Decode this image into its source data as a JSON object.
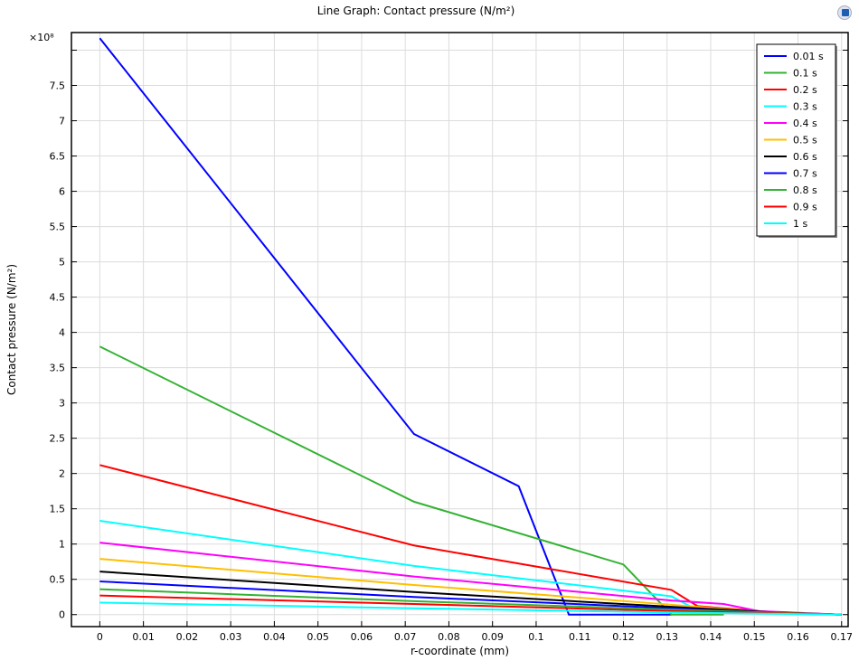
{
  "chart_data": {
    "type": "line",
    "title": "Line Graph: Contact pressure (N/m²)",
    "xlabel": "r-coordinate (mm)",
    "ylabel": "Contact pressure (N/m²)",
    "y_multiplier": "×10⁸",
    "xlim": [
      -0.0065,
      0.1715
    ],
    "ylim": [
      -0.17,
      8.25
    ],
    "xticks": [
      0,
      0.01,
      0.02,
      0.03,
      0.04,
      0.05,
      0.06,
      0.07,
      0.08,
      0.09,
      0.1,
      0.11,
      0.12,
      0.13,
      0.14,
      0.15,
      0.16,
      0.17
    ],
    "yticks": [
      0,
      0.5,
      1,
      1.5,
      2,
      2.5,
      3,
      3.5,
      4,
      4.5,
      5,
      5.5,
      6,
      6.5,
      7,
      7.5
    ],
    "grid": true,
    "legend_position": "top-right",
    "series": [
      {
        "name": "0.01 s",
        "color": "#0000ff",
        "points": [
          [
            0,
            8.17
          ],
          [
            0.072,
            2.56
          ],
          [
            0.096,
            1.82
          ],
          [
            0.1075,
            0
          ],
          [
            0.131,
            0
          ]
        ]
      },
      {
        "name": "0.1 s",
        "color": "#33b233",
        "points": [
          [
            0,
            3.8
          ],
          [
            0.072,
            1.6
          ],
          [
            0.12,
            0.71
          ],
          [
            0.131,
            0
          ],
          [
            0.143,
            0
          ]
        ]
      },
      {
        "name": "0.2 s",
        "color": "#ff0000",
        "points": [
          [
            0,
            2.12
          ],
          [
            0.072,
            0.98
          ],
          [
            0.131,
            0.35
          ],
          [
            0.137,
            0.12
          ],
          [
            0.155,
            0.03
          ],
          [
            0.17,
            0
          ]
        ]
      },
      {
        "name": "0.3 s",
        "color": "#00ffff",
        "points": [
          [
            0,
            1.33
          ],
          [
            0.072,
            0.69
          ],
          [
            0.131,
            0.26
          ],
          [
            0.137,
            0.06
          ],
          [
            0.17,
            0
          ]
        ]
      },
      {
        "name": "0.4 s",
        "color": "#ff00ff",
        "points": [
          [
            0,
            1.02
          ],
          [
            0.072,
            0.54
          ],
          [
            0.131,
            0.2
          ],
          [
            0.143,
            0.15
          ],
          [
            0.151,
            0.05
          ],
          [
            0.17,
            0
          ]
        ]
      },
      {
        "name": "0.5 s",
        "color": "#ffbf00",
        "points": [
          [
            0,
            0.79
          ],
          [
            0.072,
            0.42
          ],
          [
            0.131,
            0.14
          ],
          [
            0.155,
            0.02
          ],
          [
            0.17,
            0
          ]
        ]
      },
      {
        "name": "0.6 s",
        "color": "#000000",
        "points": [
          [
            0,
            0.61
          ],
          [
            0.072,
            0.32
          ],
          [
            0.131,
            0.11
          ],
          [
            0.155,
            0.03
          ],
          [
            0.17,
            0
          ]
        ]
      },
      {
        "name": "0.7 s",
        "color": "#0000ff",
        "points": [
          [
            0,
            0.47
          ],
          [
            0.072,
            0.25
          ],
          [
            0.131,
            0.09
          ],
          [
            0.155,
            0.02
          ],
          [
            0.17,
            0
          ]
        ]
      },
      {
        "name": "0.8 s",
        "color": "#33b233",
        "points": [
          [
            0,
            0.36
          ],
          [
            0.072,
            0.19
          ],
          [
            0.131,
            0.07
          ],
          [
            0.17,
            0
          ]
        ]
      },
      {
        "name": "0.9 s",
        "color": "#ff0000",
        "points": [
          [
            0,
            0.27
          ],
          [
            0.072,
            0.15
          ],
          [
            0.131,
            0.05
          ],
          [
            0.17,
            0
          ]
        ]
      },
      {
        "name": "1 s",
        "color": "#00ffff",
        "points": [
          [
            0,
            0.17
          ],
          [
            0.072,
            0.09
          ],
          [
            0.131,
            0.03
          ],
          [
            0.17,
            0
          ]
        ]
      }
    ]
  }
}
